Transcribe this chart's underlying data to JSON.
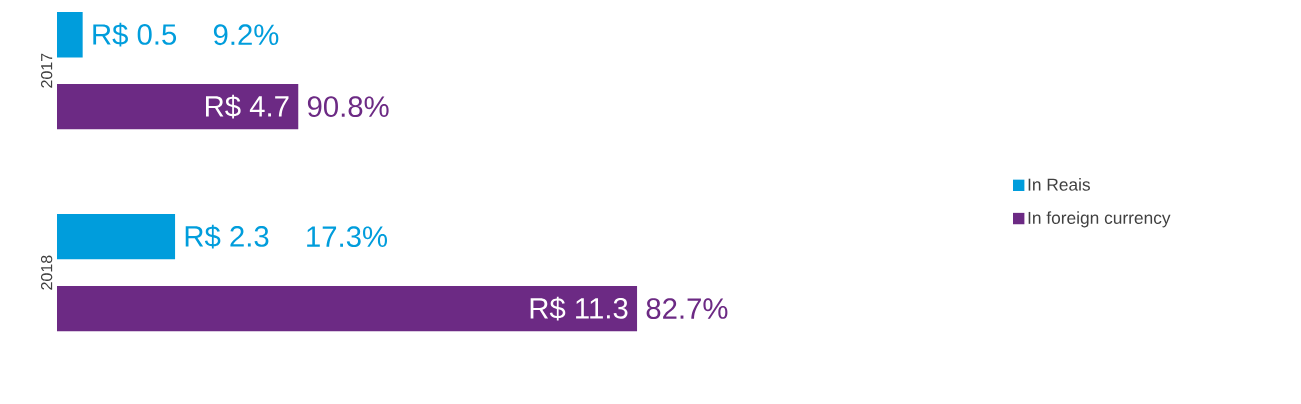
{
  "chart_data": {
    "type": "bar",
    "orientation": "horizontal",
    "categories": [
      "2017",
      "2018"
    ],
    "legend": "right",
    "series": [
      {
        "name": "In Reais",
        "color": "#009ddc",
        "values": [
          0.5,
          2.3
        ],
        "value_labels": [
          "R$ 0.5",
          "R$ 2.3"
        ]
      },
      {
        "name": "In foreign currency",
        "color": "#6c2a84",
        "values": [
          4.7,
          11.3
        ],
        "value_labels": [
          "R$ 4.7",
          "R$ 11.3"
        ]
      }
    ],
    "annotations": [
      "9.2%",
      "90.8%",
      "17.3%",
      "82.7%"
    ]
  }
}
